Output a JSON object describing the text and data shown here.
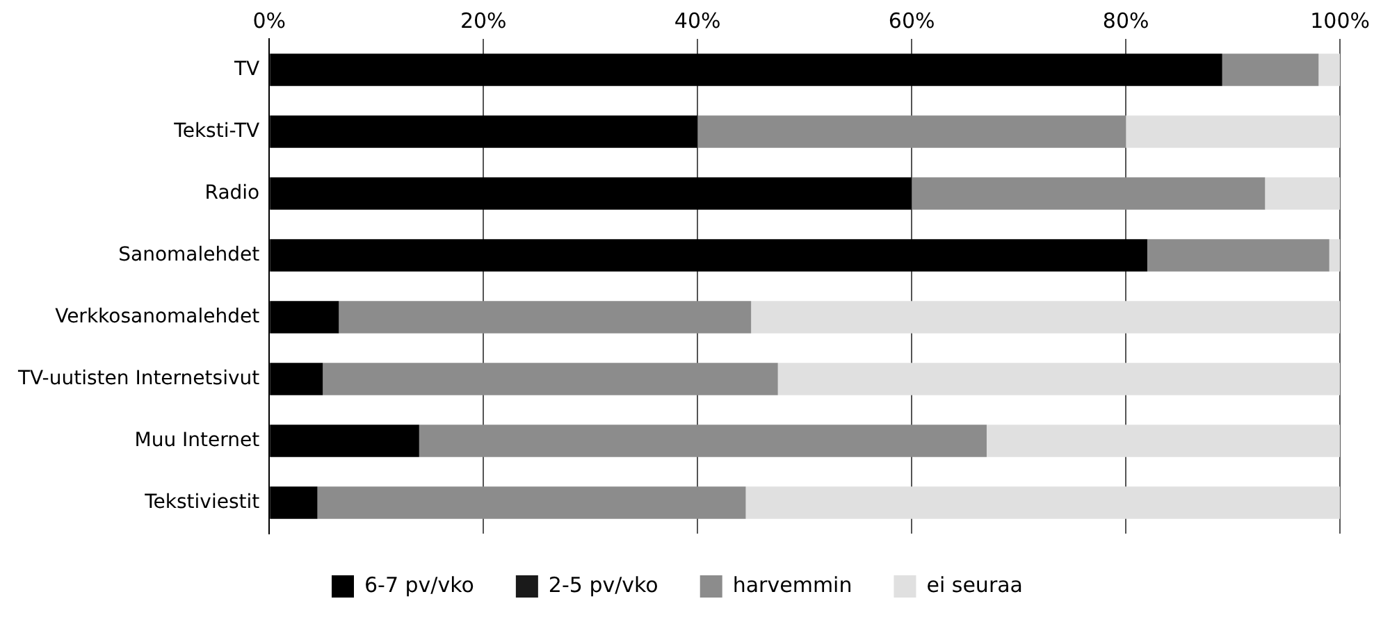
{
  "chart_data": {
    "type": "bar",
    "orientation": "horizontal",
    "stacked": true,
    "categories": [
      "TV",
      "Teksti-TV",
      "Radio",
      "Sanomalehdet",
      "Verkkosanomalehdet",
      "TV-uutisten Internetsivut",
      "Muu Internet",
      "Tekstiviestit"
    ],
    "series": [
      {
        "name": "6-7 pv/vko",
        "color": "#000000",
        "values": [
          89,
          40,
          60,
          82,
          6.5,
          5,
          14,
          4.5
        ]
      },
      {
        "name": "2-5 pv/vko",
        "color": "#1a1a1a",
        "values": [
          null,
          null,
          null,
          null,
          null,
          null,
          null,
          null
        ]
      },
      {
        "name": "harvemmin",
        "color": "#8c8c8c",
        "values": [
          9,
          40,
          33,
          17,
          38.5,
          42.5,
          53,
          40
        ]
      },
      {
        "name": "ei seuraa",
        "color": "#e0e0e0",
        "values": [
          2,
          20,
          7,
          1,
          55,
          52.5,
          33,
          55.5
        ]
      }
    ],
    "xlim": [
      0,
      100
    ],
    "xticks": [
      {
        "value": 0,
        "label": "0%"
      },
      {
        "value": 20,
        "label": "20%"
      },
      {
        "value": 40,
        "label": "40%"
      },
      {
        "value": 60,
        "label": "60%"
      },
      {
        "value": 80,
        "label": "80%"
      },
      {
        "value": 100,
        "label": "100%"
      }
    ],
    "grid": "x",
    "legend": "bottom"
  }
}
